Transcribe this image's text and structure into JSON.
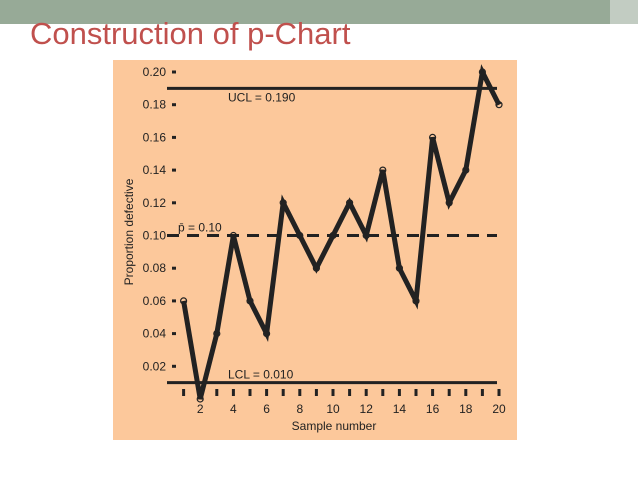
{
  "slide": {
    "title": "Construction of p-Chart"
  },
  "colors": {
    "title": "#c0504d",
    "plot_background": "#fcc89b",
    "line": "#222222"
  },
  "chart_data": {
    "type": "line",
    "xlabel": "Sample number",
    "ylabel": "Proportion defective",
    "xlim": [
      0,
      20
    ],
    "ylim": [
      0,
      0.2
    ],
    "x_ticks": [
      2,
      4,
      6,
      8,
      10,
      12,
      14,
      16,
      18,
      20
    ],
    "y_ticks": [
      0.02,
      0.04,
      0.06,
      0.08,
      0.1,
      0.12,
      0.14,
      0.16,
      0.18,
      0.2
    ],
    "x_tick_labels": [
      "2",
      "4",
      "6",
      "8",
      "10",
      "12",
      "14",
      "16",
      "18",
      "20"
    ],
    "y_tick_labels": [
      "0.02",
      "0.04",
      "0.06",
      "0.08",
      "0.10",
      "0.12",
      "0.14",
      "0.16",
      "0.18",
      "0.20"
    ],
    "series": [
      {
        "x": [
          1,
          2,
          3,
          4,
          5,
          6,
          7,
          8,
          9,
          10,
          11,
          12,
          13,
          14,
          15,
          16,
          17,
          18,
          19,
          20
        ],
        "values": [
          0.06,
          0.0,
          0.04,
          0.1,
          0.06,
          0.04,
          0.12,
          0.1,
          0.08,
          0.1,
          0.12,
          0.1,
          0.14,
          0.08,
          0.06,
          0.16,
          0.12,
          0.14,
          0.2,
          0.18
        ]
      }
    ],
    "reference_lines": [
      {
        "label": "UCL = 0.190",
        "value": 0.19,
        "style": "solid"
      },
      {
        "label": "p̄ = 0.10",
        "value": 0.1,
        "style": "dashed"
      },
      {
        "label": "LCL = 0.010",
        "value": 0.01,
        "style": "solid"
      }
    ]
  }
}
